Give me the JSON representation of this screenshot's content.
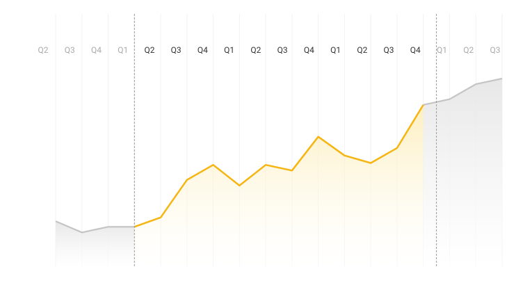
{
  "chart_data": {
    "type": "line",
    "categories": [
      "Q2",
      "Q3",
      "Q4",
      "Q1",
      "Q2",
      "Q3",
      "Q4",
      "Q1",
      "Q2",
      "Q3",
      "Q4",
      "Q1",
      "Q2",
      "Q3",
      "Q4",
      "Q1",
      "Q2",
      "Q3"
    ],
    "values": [
      24,
      18,
      21,
      21,
      26,
      46,
      54,
      43,
      54,
      51,
      69,
      59,
      55,
      63,
      86,
      89,
      97,
      100
    ],
    "ylim": [
      0,
      100
    ],
    "highlight": {
      "start": 3,
      "end": 14,
      "color": "#f5b512"
    },
    "color": "#c4c4c4",
    "grid": true
  }
}
